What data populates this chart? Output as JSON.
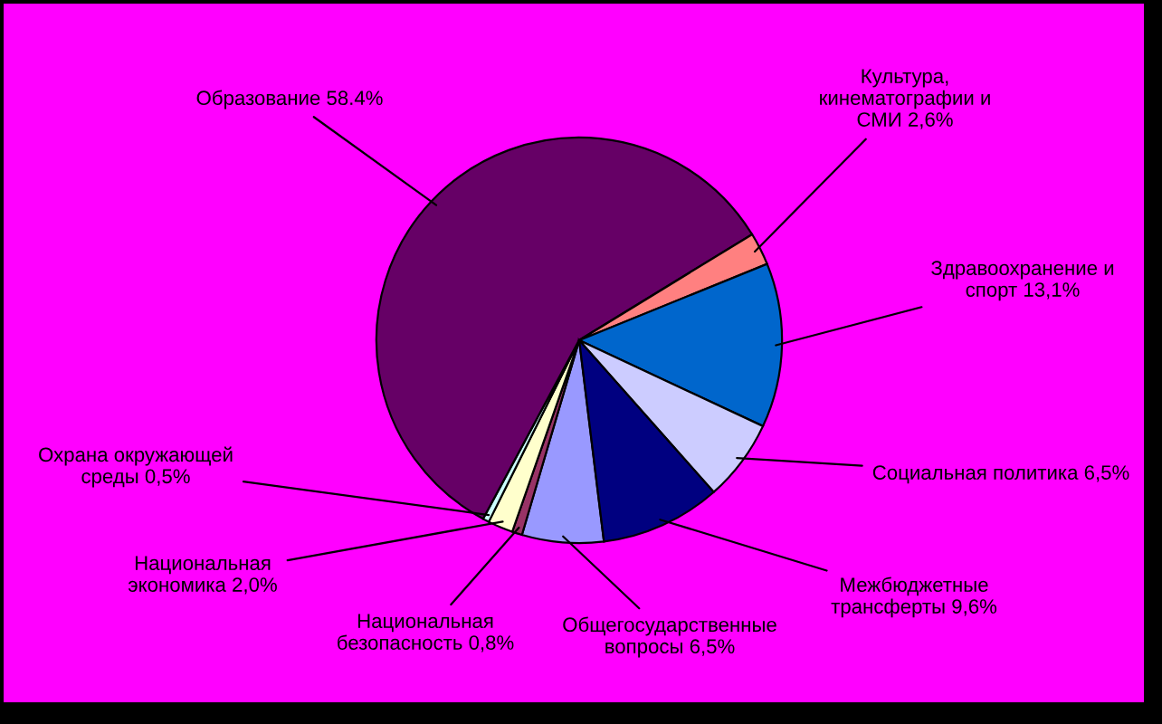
{
  "chart_data": {
    "type": "pie",
    "categories": [
      "Общегосударственные\nвопросы",
      "Национальная\nбезопасность",
      "Национальная\nэкономика",
      "Охрана окружающей\nсреды",
      "Образование",
      "Культура,\nкинематографии и\nСМИ",
      "Здравоохранение и\nспорт",
      "Социальная политика",
      "Межбюджетные\nтрансферты"
    ],
    "values": [
      6.5,
      0.8,
      2.0,
      0.5,
      58.4,
      2.6,
      13.1,
      6.5,
      9.6
    ],
    "value_labels": [
      "6,5%",
      "0,8%",
      "2,0%",
      "0,5%",
      "58.4%",
      "2,6%",
      "13,1%",
      "6,5%",
      "9,6%"
    ],
    "colors": [
      "#9999ff",
      "#993366",
      "#ffffcc",
      "#ccffff",
      "#660066",
      "#ff8080",
      "#0066cc",
      "#ccccff",
      "#000080"
    ]
  }
}
